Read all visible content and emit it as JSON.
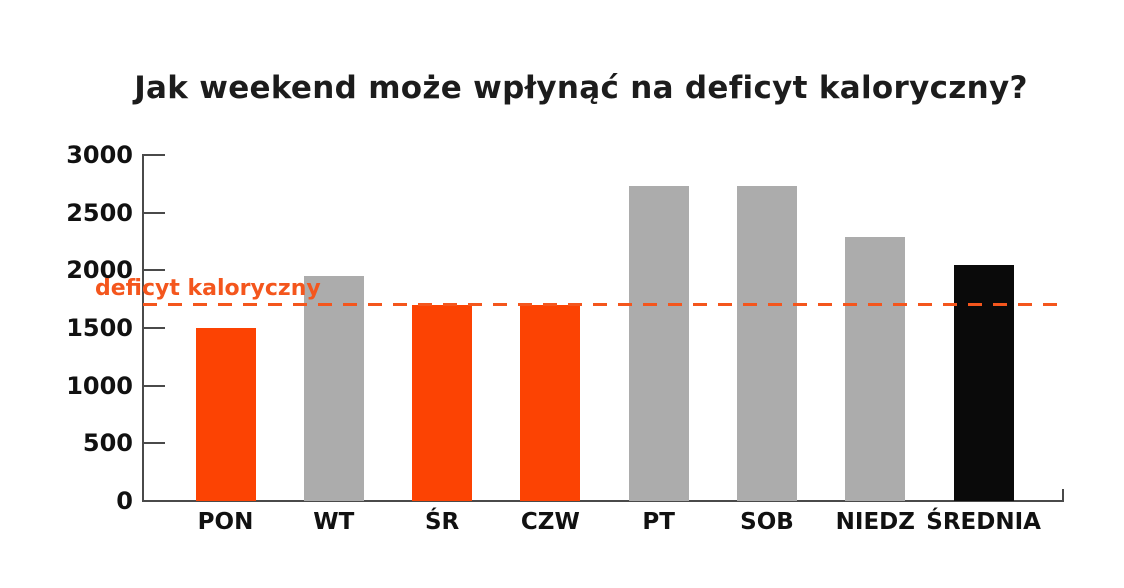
{
  "chart_data": {
    "type": "bar",
    "title": "Jak weekend może wpłynąć na deficyt kaloryczny?",
    "categories": [
      "PON",
      "WT",
      "ŚR",
      "CZW",
      "PT",
      "SOB",
      "NIEDZ",
      "ŚREDNIA"
    ],
    "values": [
      1500,
      1950,
      1700,
      1700,
      2730,
      2730,
      2290,
      2050
    ],
    "bar_colors": [
      "#FC4303",
      "#ACACAC",
      "#FC4303",
      "#FC4303",
      "#ACACAC",
      "#ACACAC",
      "#ACACAC",
      "#0A0A0A"
    ],
    "xlabel": "",
    "ylabel": "",
    "ylim": [
      0,
      3000
    ],
    "y_ticks": [
      0,
      500,
      1000,
      1500,
      2000,
      2500,
      3000
    ],
    "grid": false,
    "legend_position": "none",
    "reference_line": {
      "label": "deficyt kaloryczny",
      "value": 1700,
      "style": "dashed",
      "color": "#F4561D"
    }
  },
  "colors": {
    "background": "#ffffff",
    "axis": "#4a4a4a",
    "text": "#111111",
    "accent_orange": "#FC4303",
    "neutral_gray": "#ACACAC",
    "average_black": "#0A0A0A",
    "reference_orange": "#F4561D"
  }
}
